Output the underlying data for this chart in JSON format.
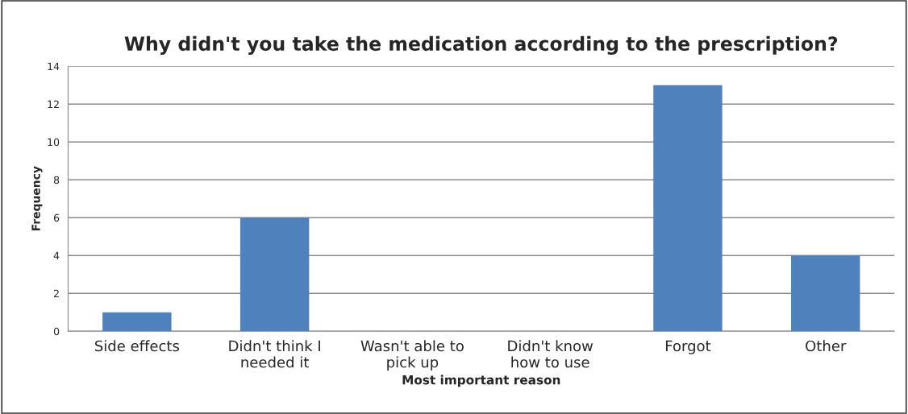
{
  "chart_data": {
    "type": "bar",
    "title": "Why didn't you take the medication according to the prescription?",
    "xlabel": "Most important reason",
    "ylabel": "Frequency",
    "categories": [
      "Side effects",
      "Didn't think I\nneeded it",
      "Wasn't able to\npick up",
      "Didn't know\nhow to use",
      "Forgot",
      "Other"
    ],
    "values": [
      1,
      6,
      0,
      0,
      13,
      4
    ],
    "color": "#4f81bd",
    "ylim": [
      0,
      14
    ],
    "yticks": [
      0,
      2,
      4,
      6,
      8,
      10,
      12,
      14
    ],
    "grid": "y",
    "legend": false
  }
}
